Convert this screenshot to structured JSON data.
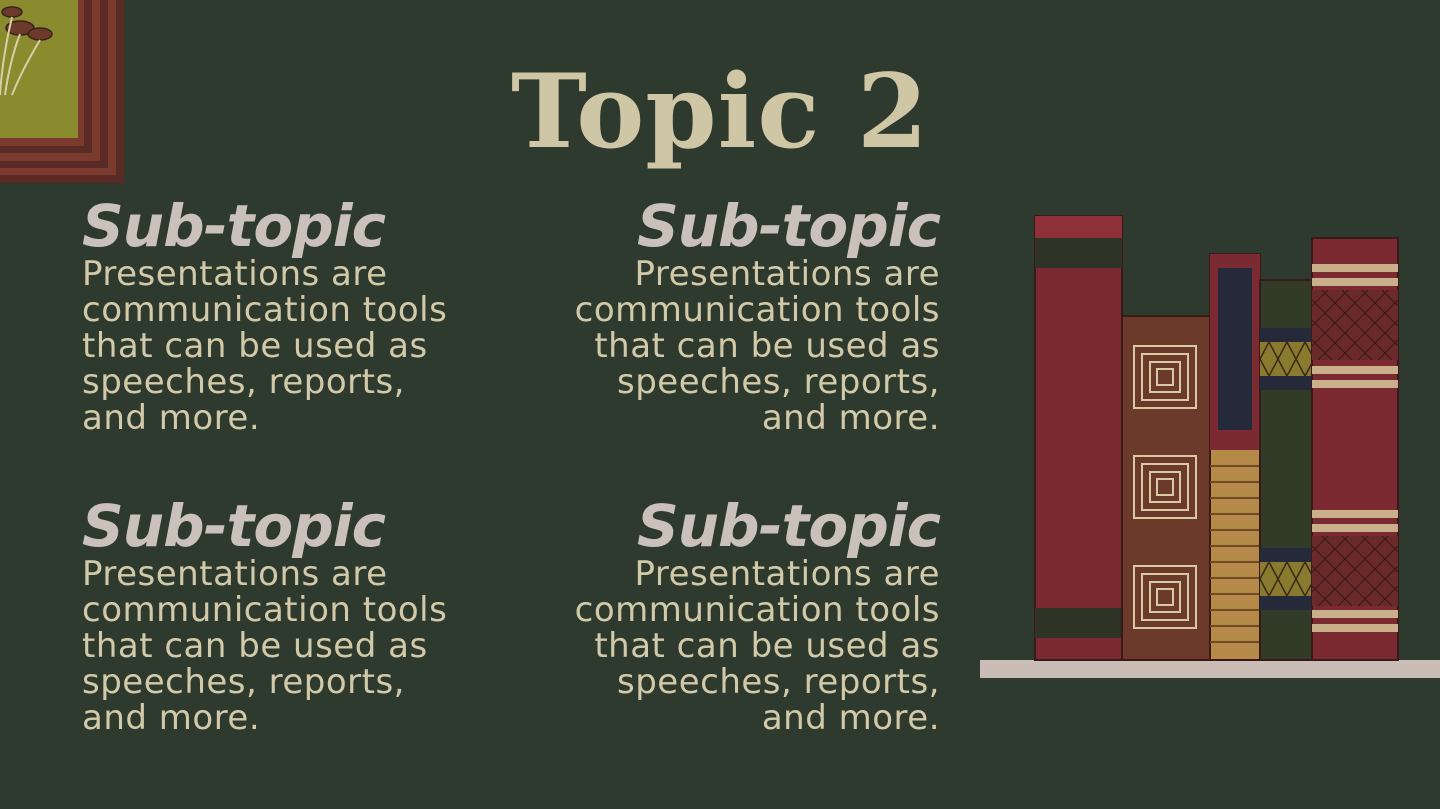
{
  "slide": {
    "title": "Topic 2",
    "blocks": [
      {
        "heading": "Sub-topic",
        "text": "Presentations are\ncommunication tools\nthat can be used as\nspeeches, reports,\nand more."
      },
      {
        "heading": "Sub-topic",
        "text": "Presentations are\ncommunication tools\nthat can be used as\nspeeches, reports,\nand more."
      },
      {
        "heading": "Sub-topic",
        "text": "Presentations are\ncommunication tools\nthat can be used as\nspeeches, reports,\nand more."
      },
      {
        "heading": "Sub-topic",
        "text": "Presentations are\ncommunication tools\nthat can be used as\nspeeches, reports,\nand more."
      }
    ]
  },
  "colors": {
    "background": "#2f3a2f",
    "title": "#cfc6a6",
    "heading": "#c9c1ba",
    "body": "#d2c9a8",
    "book_red": "#7a2a30",
    "book_brown": "#6b3a2a",
    "shelf": "#c9bdb5"
  },
  "icons": {
    "frame": "framed-mushroom-picture",
    "books": "bookshelf-books-illustration"
  }
}
